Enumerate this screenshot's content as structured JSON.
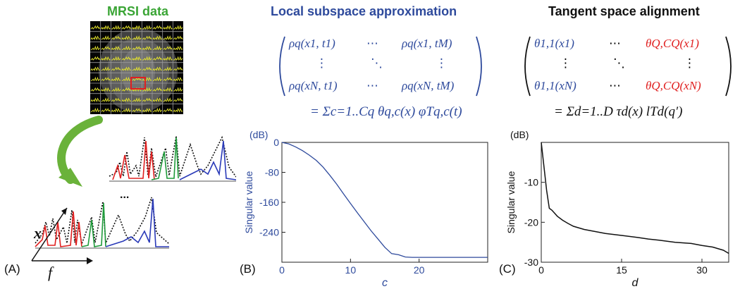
{
  "panel_a": {
    "title": "MRSI data",
    "label": "(A)",
    "axis_x": "x",
    "axis_f": "f",
    "ellipsis": "...",
    "colors": {
      "title": "#3aa535",
      "grid_line": "#e8e82a",
      "roi": "#e02020",
      "arrow": "#6ab23a"
    }
  },
  "panel_b": {
    "title": "Local subspace approximation",
    "label": "(B)",
    "color": "#2e4a9c",
    "matrix": {
      "r1c1": "ρq(x1, t1)",
      "r1c2": "⋯",
      "r1c3": "ρq(x1, tM)",
      "r2c1": "⋮",
      "r2c2": "⋱",
      "r2c3": "⋮",
      "r3c1": "ρq(xN, t1)",
      "r3c2": "⋯",
      "r3c3": "ρq(xN, tM)"
    },
    "equation": "= Σc=1..Cq θq,c(x) φTq,c(t)"
  },
  "panel_c": {
    "title": "Tangent space alignment",
    "label": "(C)",
    "matrix_colors": {
      "left": "#2e4a9c",
      "right": "#e02020"
    },
    "matrix": {
      "r1c1": "θ1,1(x1)",
      "r1c2": "⋯",
      "r1c3": "θQ,CQ(x1)",
      "r2c1": "⋮",
      "r2c2": "⋱",
      "r2c3": "⋮",
      "r3c1": "θ1,1(xN)",
      "r3c2": "⋯",
      "r3c3": "θQ,CQ(xN)"
    },
    "equation": "= Σd=1..D τd(x) lTd(q′)"
  },
  "chart_data": [
    {
      "type": "line",
      "xlabel": "c",
      "ylabel": "Singular value",
      "yunit": "(dB)",
      "xlim": [
        0,
        30
      ],
      "ylim": [
        -320,
        0
      ],
      "xticks": [
        0,
        10,
        20
      ],
      "yticks": [
        0,
        -80,
        -160,
        -240
      ],
      "color": "#2e4a9c",
      "series": [
        {
          "x": [
            0,
            1,
            2,
            3,
            4,
            5,
            6,
            7,
            8,
            9,
            10,
            11,
            12,
            13,
            14,
            15,
            16,
            17,
            18,
            19,
            20,
            22,
            25,
            28,
            30
          ],
          "y": [
            0,
            -4,
            -12,
            -22,
            -34,
            -48,
            -66,
            -88,
            -112,
            -138,
            -163,
            -188,
            -212,
            -236,
            -258,
            -280,
            -297,
            -300,
            -306,
            -307,
            -307,
            -307,
            -307,
            -307,
            -307
          ]
        }
      ]
    },
    {
      "type": "line",
      "xlabel": "d",
      "ylabel": "Singular value",
      "yunit": "(dB)",
      "xlim": [
        0,
        35
      ],
      "ylim": [
        -30,
        0
      ],
      "xticks": [
        0,
        15,
        30
      ],
      "yticks": [
        -10,
        -20,
        -30
      ],
      "color": "#111111",
      "series": [
        {
          "x": [
            0,
            0.5,
            1,
            1.5,
            2,
            3,
            4,
            5,
            6,
            8,
            10,
            12,
            15,
            18,
            20,
            22,
            25,
            28,
            30,
            32,
            34,
            35
          ],
          "y": [
            0,
            -6,
            -12,
            -16.5,
            -17,
            -18.5,
            -19.5,
            -20.3,
            -21,
            -21.8,
            -22.3,
            -22.8,
            -23.3,
            -23.8,
            -24.2,
            -24.5,
            -25,
            -25.3,
            -25.8,
            -26.2,
            -27,
            -27.8
          ]
        }
      ]
    }
  ]
}
